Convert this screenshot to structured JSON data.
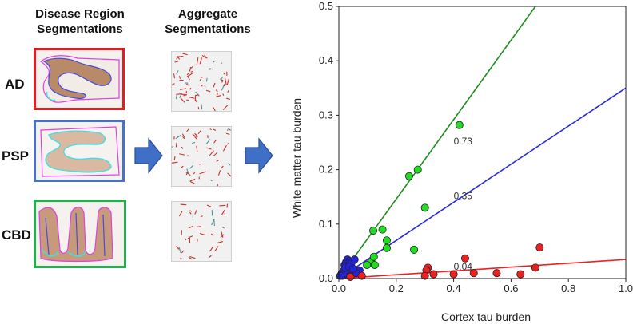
{
  "headers": {
    "disease_line1": "Disease Region",
    "disease_line2": "Segmentations",
    "aggregate_line1": "Aggregate",
    "aggregate_line2": "Segmentations"
  },
  "rows": [
    {
      "label": "AD",
      "frame_color": "#e02020"
    },
    {
      "label": "PSP",
      "frame_color": "#4a72c4"
    },
    {
      "label": "CBD",
      "frame_color": "#22b04a"
    }
  ],
  "colors": {
    "arrow": "#3f6fc6",
    "gray_matter_outline": "#e040e0",
    "white_matter_outline": "#40e0e0",
    "tissue": "#b98a68"
  },
  "chart_data": {
    "type": "scatter",
    "xlabel": "Cortex tau burden",
    "ylabel": "White matter tau burden",
    "xlim": [
      0,
      1.0
    ],
    "ylim": [
      0,
      0.5
    ],
    "xticks": [
      "0.0",
      "0.2",
      "0.4",
      "0.6",
      "0.8",
      "1.0"
    ],
    "yticks": [
      "0.0",
      "0.1",
      "0.2",
      "0.3",
      "0.4",
      "0.5"
    ],
    "series": [
      {
        "name": "AD",
        "color": "#22dd22",
        "line_color": "#1e8c1e",
        "slope": 0.73,
        "slope_label": "0.73",
        "label_x": 0.4,
        "label_y": 0.246,
        "points": [
          [
            0.42,
            0.282
          ],
          [
            0.275,
            0.2
          ],
          [
            0.245,
            0.188
          ],
          [
            0.3,
            0.13
          ],
          [
            0.152,
            0.09
          ],
          [
            0.12,
            0.088
          ],
          [
            0.167,
            0.07
          ],
          [
            0.167,
            0.056
          ],
          [
            0.262,
            0.053
          ],
          [
            0.112,
            0.03
          ],
          [
            0.125,
            0.025
          ],
          [
            0.098,
            0.025
          ],
          [
            0.122,
            0.04
          ]
        ]
      },
      {
        "name": "PSP",
        "color": "#2222dd",
        "line_color": "#2a2ae0",
        "slope": 0.35,
        "slope_label": "0.35",
        "label_x": 0.4,
        "label_y": 0.146,
        "points": [
          [
            0.005,
            0.005
          ],
          [
            0.01,
            0.01
          ],
          [
            0.018,
            0.015
          ],
          [
            0.02,
            0.025
          ],
          [
            0.025,
            0.03
          ],
          [
            0.03,
            0.035
          ],
          [
            0.038,
            0.032
          ],
          [
            0.045,
            0.03
          ],
          [
            0.055,
            0.035
          ],
          [
            0.012,
            0.005
          ],
          [
            0.03,
            0.008
          ],
          [
            0.04,
            0.005
          ],
          [
            0.072,
            0.015
          ],
          [
            0.06,
            0.01
          ],
          [
            0.022,
            0.02
          ],
          [
            0.035,
            0.022
          ],
          [
            0.05,
            0.018
          ]
        ]
      },
      {
        "name": "CBD",
        "color": "#ee2020",
        "line_color": "#ee2020",
        "slope": 0.035,
        "slope_label": "0.04",
        "label_x": 0.4,
        "label_y": 0.016,
        "points": [
          [
            0.7,
            0.057
          ],
          [
            0.685,
            0.02
          ],
          [
            0.633,
            0.008
          ],
          [
            0.55,
            0.01
          ],
          [
            0.47,
            0.01
          ],
          [
            0.44,
            0.037
          ],
          [
            0.4,
            0.008
          ],
          [
            0.33,
            0.008
          ],
          [
            0.31,
            0.02
          ],
          [
            0.305,
            0.015
          ],
          [
            0.3,
            0.005
          ],
          [
            0.04,
            0.003
          ],
          [
            0.08,
            0.005
          ]
        ]
      }
    ]
  }
}
